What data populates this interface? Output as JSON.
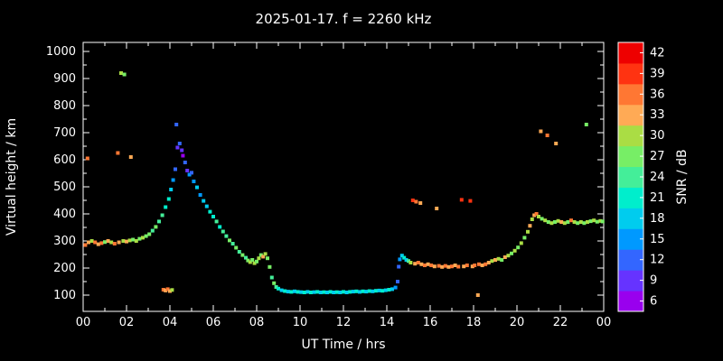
{
  "chart_data": {
    "type": "scatter",
    "title": "2025-01-17. f = 2260 kHz",
    "xlabel": "UT Time / hrs",
    "ylabel": "Virtual height / km",
    "xlim": [
      0,
      24
    ],
    "ylim": [
      100,
      1000
    ],
    "xticks": [
      "00",
      "02",
      "04",
      "06",
      "08",
      "10",
      "12",
      "14",
      "16",
      "18",
      "20",
      "22",
      "00"
    ],
    "yticks": [
      100,
      200,
      300,
      400,
      500,
      600,
      700,
      800,
      900,
      1000
    ],
    "grid": false,
    "colorbar": {
      "label": "SNR / dB",
      "ticks": [
        6,
        9,
        12,
        15,
        18,
        21,
        24,
        27,
        30,
        33,
        36,
        39,
        42
      ],
      "range": [
        4.5,
        43.5
      ],
      "colors": [
        [
          6,
          "#9900ee"
        ],
        [
          9,
          "#6633ff"
        ],
        [
          12,
          "#3366ff"
        ],
        [
          15,
          "#0099ff"
        ],
        [
          18,
          "#00ccee"
        ],
        [
          21,
          "#00eecc"
        ],
        [
          24,
          "#44ee99"
        ],
        [
          27,
          "#77ee66"
        ],
        [
          30,
          "#aadd44"
        ],
        [
          33,
          "#ffaa55"
        ],
        [
          36,
          "#ff7733"
        ],
        [
          39,
          "#ff3311"
        ],
        [
          42,
          "#ee0000"
        ]
      ]
    },
    "points": [
      [
        0.1,
        285,
        36
      ],
      [
        0.2,
        605,
        36
      ],
      [
        0.25,
        295,
        33
      ],
      [
        0.4,
        300,
        30
      ],
      [
        0.55,
        295,
        36
      ],
      [
        0.7,
        288,
        33
      ],
      [
        0.85,
        292,
        36
      ],
      [
        1.0,
        296,
        27
      ],
      [
        1.15,
        300,
        33
      ],
      [
        1.3,
        295,
        30
      ],
      [
        1.45,
        290,
        36
      ],
      [
        1.6,
        625,
        36
      ],
      [
        1.65,
        295,
        33
      ],
      [
        1.75,
        920,
        30
      ],
      [
        1.85,
        300,
        30
      ],
      [
        1.9,
        915,
        27
      ],
      [
        2.0,
        298,
        33
      ],
      [
        2.15,
        302,
        30
      ],
      [
        2.2,
        610,
        33
      ],
      [
        2.3,
        305,
        27
      ],
      [
        2.45,
        300,
        30
      ],
      [
        2.6,
        308,
        27
      ],
      [
        2.75,
        312,
        30
      ],
      [
        2.9,
        318,
        27
      ],
      [
        3.05,
        325,
        27
      ],
      [
        3.2,
        338,
        24
      ],
      [
        3.35,
        352,
        27
      ],
      [
        3.5,
        372,
        24
      ],
      [
        3.65,
        395,
        24
      ],
      [
        3.8,
        425,
        21
      ],
      [
        3.95,
        455,
        21
      ],
      [
        3.7,
        120,
        36
      ],
      [
        3.8,
        117,
        33
      ],
      [
        3.9,
        122,
        36
      ],
      [
        4.0,
        115,
        33
      ],
      [
        4.1,
        119,
        30
      ],
      [
        4.05,
        490,
        18
      ],
      [
        4.15,
        525,
        15
      ],
      [
        4.25,
        565,
        12
      ],
      [
        4.3,
        730,
        12
      ],
      [
        4.35,
        645,
        9
      ],
      [
        4.45,
        660,
        12
      ],
      [
        4.55,
        635,
        9
      ],
      [
        4.6,
        615,
        6
      ],
      [
        4.7,
        590,
        12
      ],
      [
        4.8,
        560,
        9
      ],
      [
        4.9,
        545,
        15
      ],
      [
        5.0,
        552,
        12
      ],
      [
        5.1,
        520,
        15
      ],
      [
        5.25,
        498,
        18
      ],
      [
        5.4,
        470,
        15
      ],
      [
        5.55,
        448,
        18
      ],
      [
        5.7,
        428,
        18
      ],
      [
        5.85,
        408,
        21
      ],
      [
        6.0,
        390,
        21
      ],
      [
        6.15,
        372,
        24
      ],
      [
        6.3,
        352,
        21
      ],
      [
        6.45,
        335,
        24
      ],
      [
        6.6,
        318,
        24
      ],
      [
        6.75,
        302,
        27
      ],
      [
        6.9,
        290,
        24
      ],
      [
        7.05,
        275,
        27
      ],
      [
        7.2,
        260,
        24
      ],
      [
        7.35,
        248,
        27
      ],
      [
        7.5,
        238,
        24
      ],
      [
        7.6,
        228,
        27
      ],
      [
        7.7,
        222,
        30
      ],
      [
        7.8,
        230,
        27
      ],
      [
        7.9,
        218,
        30
      ],
      [
        8.0,
        224,
        27
      ],
      [
        8.1,
        236,
        30
      ],
      [
        8.2,
        248,
        27
      ],
      [
        8.3,
        242,
        33
      ],
      [
        8.4,
        252,
        30
      ],
      [
        8.5,
        236,
        27
      ],
      [
        8.6,
        204,
        27
      ],
      [
        8.7,
        165,
        24
      ],
      [
        8.8,
        144,
        27
      ],
      [
        8.9,
        130,
        24
      ],
      [
        9.0,
        124,
        21
      ],
      [
        9.15,
        118,
        18
      ],
      [
        9.3,
        115,
        21
      ],
      [
        9.45,
        113,
        18
      ],
      [
        9.6,
        112,
        21
      ],
      [
        9.75,
        114,
        18
      ],
      [
        9.9,
        112,
        21
      ],
      [
        10.05,
        111,
        18
      ],
      [
        10.2,
        110,
        21
      ],
      [
        10.35,
        112,
        18
      ],
      [
        10.5,
        110,
        21
      ],
      [
        10.65,
        111,
        18
      ],
      [
        10.8,
        112,
        21
      ],
      [
        10.95,
        110,
        18
      ],
      [
        11.1,
        111,
        21
      ],
      [
        11.25,
        110,
        18
      ],
      [
        11.4,
        112,
        21
      ],
      [
        11.55,
        110,
        18
      ],
      [
        11.7,
        111,
        21
      ],
      [
        11.85,
        110,
        18
      ],
      [
        12.0,
        112,
        21
      ],
      [
        12.15,
        110,
        18
      ],
      [
        12.3,
        112,
        21
      ],
      [
        12.45,
        113,
        18
      ],
      [
        12.6,
        114,
        21
      ],
      [
        12.75,
        112,
        18
      ],
      [
        12.9,
        114,
        21
      ],
      [
        13.05,
        113,
        18
      ],
      [
        13.2,
        115,
        21
      ],
      [
        13.35,
        114,
        18
      ],
      [
        13.5,
        116,
        21
      ],
      [
        13.65,
        117,
        18
      ],
      [
        13.8,
        116,
        21
      ],
      [
        13.95,
        118,
        18
      ],
      [
        14.1,
        120,
        21
      ],
      [
        14.25,
        122,
        18
      ],
      [
        14.4,
        128,
        15
      ],
      [
        14.5,
        150,
        12
      ],
      [
        14.55,
        205,
        12
      ],
      [
        14.6,
        232,
        15
      ],
      [
        14.7,
        246,
        18
      ],
      [
        14.8,
        238,
        21
      ],
      [
        14.9,
        230,
        18
      ],
      [
        15.0,
        226,
        24
      ],
      [
        15.1,
        220,
        30
      ],
      [
        15.2,
        450,
        39
      ],
      [
        15.3,
        216,
        33
      ],
      [
        15.35,
        445,
        36
      ],
      [
        15.45,
        220,
        36
      ],
      [
        15.55,
        440,
        33
      ],
      [
        15.6,
        214,
        33
      ],
      [
        15.75,
        210,
        36
      ],
      [
        15.9,
        214,
        33
      ],
      [
        16.05,
        210,
        36
      ],
      [
        16.2,
        206,
        33
      ],
      [
        16.3,
        420,
        33
      ],
      [
        16.4,
        208,
        36
      ],
      [
        16.55,
        204,
        33
      ],
      [
        16.7,
        208,
        36
      ],
      [
        16.85,
        204,
        33
      ],
      [
        17.0,
        206,
        36
      ],
      [
        17.15,
        210,
        33
      ],
      [
        17.3,
        205,
        36
      ],
      [
        17.45,
        452,
        39
      ],
      [
        17.55,
        206,
        33
      ],
      [
        17.7,
        210,
        36
      ],
      [
        17.85,
        448,
        39
      ],
      [
        17.95,
        206,
        33
      ],
      [
        18.05,
        210,
        36
      ],
      [
        18.2,
        100,
        33
      ],
      [
        18.25,
        214,
        36
      ],
      [
        18.4,
        210,
        33
      ],
      [
        18.55,
        214,
        36
      ],
      [
        18.7,
        220,
        33
      ],
      [
        18.85,
        226,
        30
      ],
      [
        19.0,
        230,
        33
      ],
      [
        19.15,
        234,
        30
      ],
      [
        19.3,
        230,
        27
      ],
      [
        19.45,
        240,
        33
      ],
      [
        19.6,
        246,
        30
      ],
      [
        19.75,
        254,
        27
      ],
      [
        19.9,
        264,
        30
      ],
      [
        20.05,
        276,
        27
      ],
      [
        20.2,
        292,
        30
      ],
      [
        20.35,
        312,
        27
      ],
      [
        20.5,
        334,
        30
      ],
      [
        20.6,
        356,
        33
      ],
      [
        20.7,
        380,
        30
      ],
      [
        20.8,
        395,
        33
      ],
      [
        20.9,
        400,
        36
      ],
      [
        21.0,
        390,
        30
      ],
      [
        21.1,
        705,
        33
      ],
      [
        21.15,
        382,
        27
      ],
      [
        21.3,
        376,
        30
      ],
      [
        21.4,
        690,
        36
      ],
      [
        21.45,
        370,
        27
      ],
      [
        21.6,
        366,
        30
      ],
      [
        21.75,
        370,
        27
      ],
      [
        21.8,
        660,
        33
      ],
      [
        21.9,
        374,
        30
      ],
      [
        22.05,
        370,
        33
      ],
      [
        22.2,
        366,
        30
      ],
      [
        22.35,
        370,
        27
      ],
      [
        22.5,
        376,
        36
      ],
      [
        22.65,
        370,
        30
      ],
      [
        22.8,
        366,
        27
      ],
      [
        22.95,
        370,
        30
      ],
      [
        23.1,
        366,
        27
      ],
      [
        23.2,
        730,
        27
      ],
      [
        23.25,
        370,
        30
      ],
      [
        23.4,
        373,
        27
      ],
      [
        23.55,
        376,
        30
      ],
      [
        23.7,
        371,
        27
      ],
      [
        23.85,
        374,
        30
      ],
      [
        23.95,
        372,
        27
      ]
    ]
  }
}
